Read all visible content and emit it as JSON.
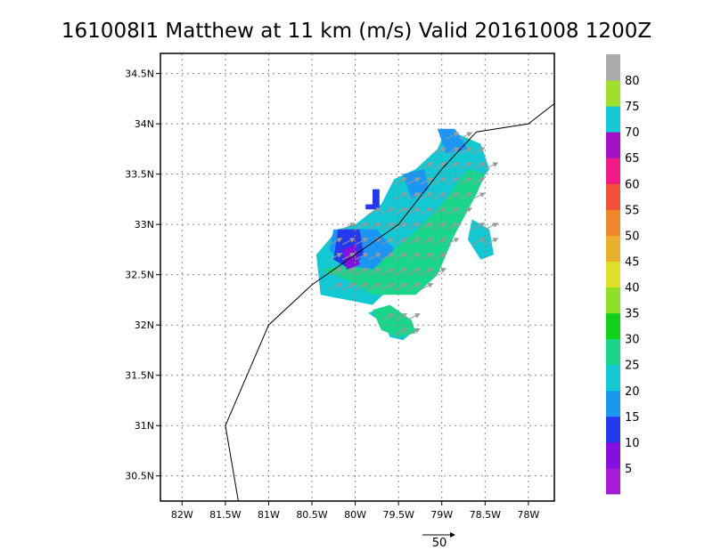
{
  "chart_data": {
    "type": "heatmap",
    "title": "161008I1 Matthew at 11 km (m/s) Valid 20161008 1200Z",
    "x_ticks": [
      "82W",
      "81.5W",
      "81W",
      "80.5W",
      "80W",
      "79.5W",
      "79W",
      "78.5W",
      "78W"
    ],
    "x_tick_values": [
      -82.0,
      -81.5,
      -81.0,
      -80.5,
      -80.0,
      -79.5,
      -79.0,
      -78.5,
      -78.0
    ],
    "y_ticks": [
      "30.5N",
      "31N",
      "31.5N",
      "32N",
      "32.5N",
      "33N",
      "33.5N",
      "34N",
      "34.5N"
    ],
    "y_tick_values": [
      30.5,
      31.0,
      31.5,
      32.0,
      32.5,
      33.0,
      33.5,
      34.0,
      34.5
    ],
    "xlim": [
      -82.25,
      -77.7
    ],
    "ylim": [
      30.25,
      34.7
    ],
    "grid": true,
    "colorbar": {
      "labels": [
        "5",
        "10",
        "15",
        "20",
        "25",
        "30",
        "35",
        "40",
        "45",
        "50",
        "55",
        "60",
        "65",
        "70",
        "75",
        "80"
      ],
      "colors": [
        "#a61cd6",
        "#8410e0",
        "#2438f0",
        "#1c96f5",
        "#12c8d2",
        "#1ad68a",
        "#10d21a",
        "#8fe02a",
        "#e0e02a",
        "#eab02c",
        "#f0862c",
        "#f0503a",
        "#f01a84",
        "#a010c8",
        "#12c8d2",
        "#a0e02a",
        "#aaaaaa"
      ]
    },
    "track": {
      "lon": [
        -81.35,
        -81.5,
        -81.0,
        -80.5,
        -80.0,
        -79.5,
        -79.0,
        -78.6,
        -78.0,
        -77.7
      ],
      "lat": [
        30.25,
        31.0,
        32.0,
        32.4,
        32.7,
        33.0,
        33.55,
        33.92,
        34.0,
        34.2
      ]
    },
    "wind_regions": [
      {
        "level": 20,
        "polygon": [
          [
            -80.4,
            32.3
          ],
          [
            -79.8,
            32.2
          ],
          [
            -79.5,
            32.45
          ],
          [
            -79.2,
            32.7
          ],
          [
            -78.9,
            32.9
          ],
          [
            -78.7,
            33.25
          ],
          [
            -78.45,
            33.55
          ],
          [
            -78.55,
            33.8
          ],
          [
            -78.95,
            33.95
          ],
          [
            -79.05,
            33.75
          ],
          [
            -79.3,
            33.55
          ],
          [
            -79.55,
            33.45
          ],
          [
            -79.7,
            33.2
          ],
          [
            -80.0,
            33.0
          ],
          [
            -80.2,
            32.95
          ],
          [
            -80.45,
            32.7
          ]
        ]
      },
      {
        "level": 20,
        "polygon": [
          [
            -79.75,
            32.15
          ],
          [
            -79.45,
            32.05
          ],
          [
            -79.3,
            31.95
          ],
          [
            -79.45,
            31.85
          ],
          [
            -79.6,
            31.88
          ],
          [
            -79.65,
            32.0
          ],
          [
            -79.85,
            32.12
          ]
        ]
      },
      {
        "level": 20,
        "polygon": [
          [
            -78.65,
            33.05
          ],
          [
            -78.45,
            32.95
          ],
          [
            -78.4,
            32.7
          ],
          [
            -78.55,
            32.65
          ],
          [
            -78.7,
            32.85
          ]
        ]
      },
      {
        "level": 25,
        "polygon": [
          [
            -80.4,
            32.55
          ],
          [
            -80.1,
            32.45
          ],
          [
            -79.8,
            32.3
          ],
          [
            -79.3,
            32.3
          ],
          [
            -79.05,
            32.5
          ],
          [
            -78.85,
            32.9
          ],
          [
            -78.6,
            33.3
          ],
          [
            -78.5,
            33.5
          ],
          [
            -78.7,
            33.55
          ],
          [
            -79.0,
            33.2
          ],
          [
            -79.4,
            32.85
          ],
          [
            -79.8,
            32.6
          ],
          [
            -80.1,
            32.6
          ]
        ]
      },
      {
        "level": 25,
        "polygon": [
          [
            -79.8,
            32.15
          ],
          [
            -79.6,
            32.2
          ],
          [
            -79.35,
            32.05
          ],
          [
            -79.3,
            31.92
          ],
          [
            -79.5,
            31.88
          ],
          [
            -79.7,
            31.95
          ]
        ]
      },
      {
        "level": 15,
        "polygon": [
          [
            -80.25,
            32.95
          ],
          [
            -79.75,
            32.95
          ],
          [
            -79.55,
            32.75
          ],
          [
            -79.8,
            32.55
          ],
          [
            -80.15,
            32.6
          ],
          [
            -80.3,
            32.75
          ]
        ]
      },
      {
        "level": 15,
        "polygon": [
          [
            -79.45,
            33.5
          ],
          [
            -79.2,
            33.55
          ],
          [
            -79.15,
            33.35
          ],
          [
            -79.35,
            33.25
          ]
        ]
      },
      {
        "level": 15,
        "polygon": [
          [
            -79.05,
            33.95
          ],
          [
            -78.85,
            33.95
          ],
          [
            -78.7,
            33.75
          ],
          [
            -78.95,
            33.7
          ]
        ]
      },
      {
        "level": 10,
        "polygon": [
          [
            -80.2,
            32.95
          ],
          [
            -79.95,
            32.95
          ],
          [
            -79.9,
            32.7
          ],
          [
            -80.05,
            32.55
          ],
          [
            -80.25,
            32.65
          ]
        ]
      },
      {
        "level": 5,
        "polygon": [
          [
            -80.15,
            32.75
          ],
          [
            -80.0,
            32.8
          ],
          [
            -79.95,
            32.6
          ],
          [
            -80.1,
            32.55
          ]
        ]
      },
      {
        "level": 10,
        "polygon": [
          [
            -79.8,
            33.35
          ],
          [
            -79.72,
            33.35
          ],
          [
            -79.72,
            33.15
          ],
          [
            -79.88,
            33.15
          ],
          [
            -79.88,
            33.2
          ],
          [
            -79.8,
            33.2
          ]
        ]
      }
    ],
    "vector_scale_label": "50"
  }
}
